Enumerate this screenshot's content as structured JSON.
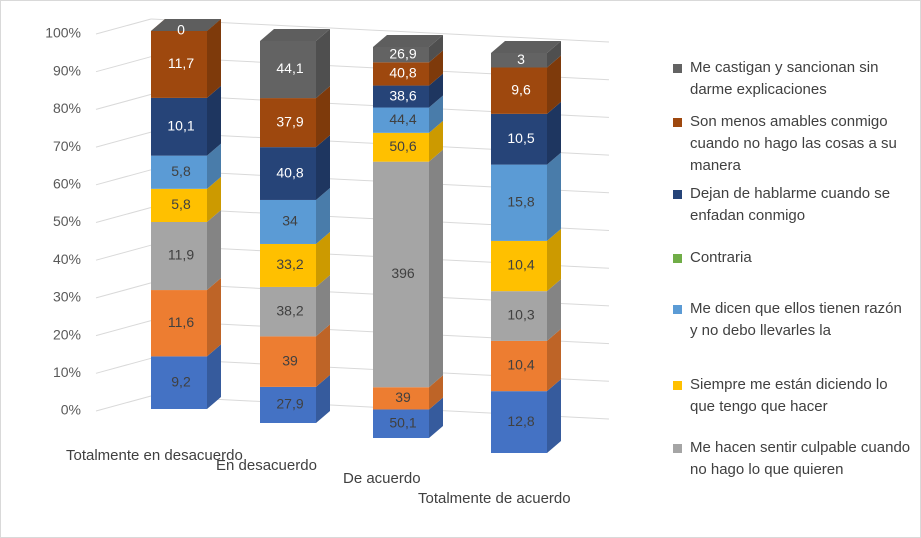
{
  "chart_data": {
    "type": "stacked_bar_3d_percent",
    "categories": [
      "Totalmente en desacuerdo",
      "En desacuerdo",
      "De acuerdo",
      "Totalmente de acuerdo"
    ],
    "ylim": [
      0,
      100
    ],
    "yticks": [
      {
        "value": 0,
        "label": "0%"
      },
      {
        "value": 10,
        "label": "10%"
      },
      {
        "value": 20,
        "label": "20%"
      },
      {
        "value": 30,
        "label": "30%"
      },
      {
        "value": 40,
        "label": "40%"
      },
      {
        "value": 50,
        "label": "50%"
      },
      {
        "value": 60,
        "label": "60%"
      },
      {
        "value": 70,
        "label": "70%"
      },
      {
        "value": 80,
        "label": "80%"
      },
      {
        "value": 90,
        "label": "90%"
      },
      {
        "value": 100,
        "label": "100%"
      }
    ],
    "grid": true,
    "series": [
      {
        "color": "#4472c4",
        "values": [
          9.2,
          27.9,
          50.1,
          12.8
        ],
        "value_labels": [
          "9,2",
          "27,9",
          "50,1",
          "12,8"
        ]
      },
      {
        "color": "#ed7d31",
        "values": [
          11.6,
          39,
          39,
          10.4
        ],
        "value_labels": [
          "11,6",
          "39",
          "39",
          "10,4"
        ]
      },
      {
        "name": "Me hacen sentir culpable cuando no hago lo que quieren",
        "color": "#a5a5a5",
        "values": [
          11.9,
          38.2,
          396,
          10.3
        ],
        "value_labels": [
          "11,9",
          "38,2",
          "396",
          "10,3"
        ]
      },
      {
        "name": "Siempre me están diciendo lo que tengo que hacer",
        "color": "#ffc000",
        "values": [
          5.8,
          33.2,
          50.6,
          10.4
        ],
        "value_labels": [
          "5,8",
          "33,2",
          "50,6",
          "10,4"
        ]
      },
      {
        "name": "Me dicen que ellos tienen razón y no debo llevarles la",
        "color": "#5b9bd5",
        "values": [
          5.8,
          34,
          44.4,
          15.8
        ],
        "value_labels": [
          "5,8",
          "34",
          "44,4",
          "15,8"
        ]
      },
      {
        "name": "Contraria",
        "color": "#70ad47",
        "values": [
          null,
          null,
          null,
          null
        ]
      },
      {
        "name": "Dejan de hablarme cuando se enfadan conmigo",
        "color": "#264478",
        "values": [
          10.1,
          40.8,
          38.6,
          10.5
        ],
        "value_labels": [
          "10,1",
          "40,8",
          "38,6",
          "10,5"
        ]
      },
      {
        "name": "Son menos amables conmigo cuando no hago las cosas a su manera",
        "color": "#9e480e",
        "values": [
          11.7,
          37.9,
          40.8,
          9.6
        ],
        "value_labels": [
          "11,7",
          "37,9",
          "40,8",
          "9,6"
        ]
      },
      {
        "name": "Me castigan y sancionan sin darme explicaciones",
        "color": "#636363",
        "values": [
          0,
          44.1,
          26.9,
          3
        ],
        "value_labels": [
          "0",
          "44,1",
          "26,9",
          "3"
        ]
      }
    ]
  }
}
